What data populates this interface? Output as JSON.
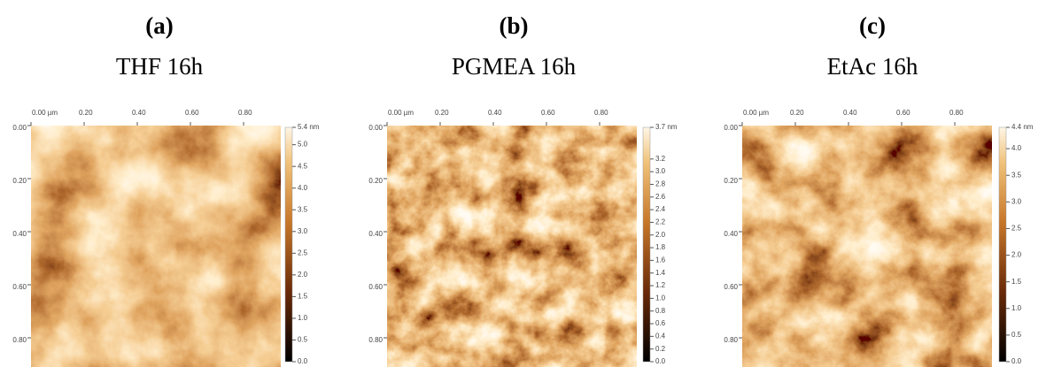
{
  "panels": [
    {
      "letter": "(a)",
      "title": "THF 16h",
      "x_ticks": [
        "0.00 µm",
        "0.20",
        "0.40",
        "0.60",
        "0.80"
      ],
      "y_ticks": [
        "0.00",
        "0.20",
        "0.40",
        "0.60",
        "0.80"
      ],
      "colorbar_ticks": [
        "5.4 nm",
        "5.0",
        "4.5",
        "4.0",
        "3.5",
        "3.0",
        "2.5",
        "2.0",
        "1.5",
        "1.0",
        "0.5",
        "0.0"
      ]
    },
    {
      "letter": "(b)",
      "title": "PGMEA 16h",
      "x_ticks": [
        "0.00 µm",
        "0.20",
        "0.40",
        "0.60",
        "0.80"
      ],
      "y_ticks": [
        "0.00",
        "0.20",
        "0.40",
        "0.60",
        "0.80"
      ],
      "colorbar_ticks": [
        "3.7 nm",
        "3.2",
        "3.0",
        "2.8",
        "2.6",
        "2.4",
        "2.2",
        "2.0",
        "1.8",
        "1.6",
        "1.4",
        "1.2",
        "1.0",
        "0.8",
        "0.6",
        "0.4",
        "0.2",
        "0.0"
      ]
    },
    {
      "letter": "(c)",
      "title": "EtAc 16h",
      "x_ticks": [
        "0.00 µm",
        "0.20",
        "0.40",
        "0.60",
        "0.80"
      ],
      "y_ticks": [
        "0.00",
        "0.20",
        "0.40",
        "0.60",
        "0.80"
      ],
      "colorbar_ticks": [
        "4.4 nm",
        "4.0",
        "3.5",
        "3.0",
        "2.5",
        "2.0",
        "1.5",
        "1.0",
        "0.5",
        "0.0"
      ]
    }
  ]
}
